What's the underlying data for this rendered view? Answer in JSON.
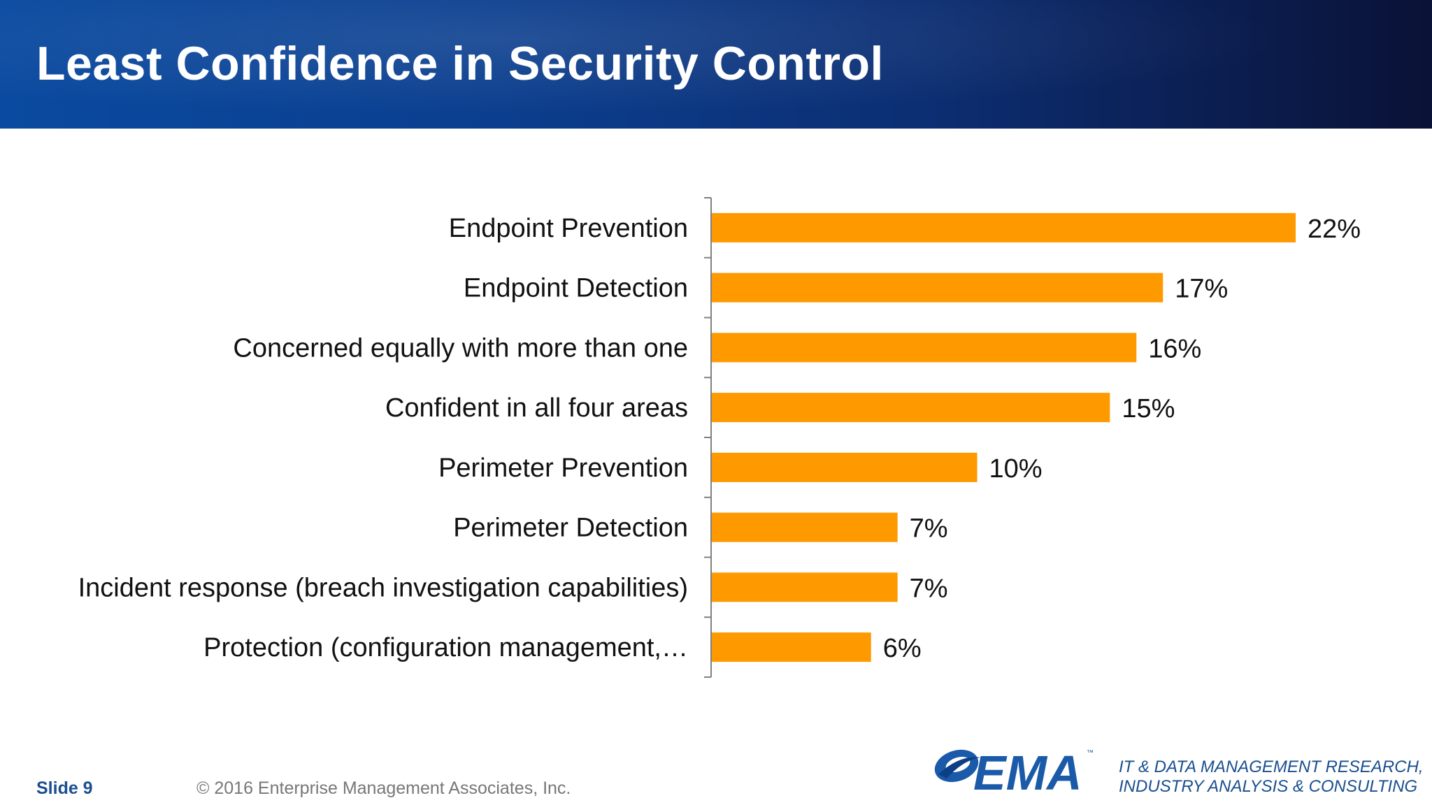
{
  "slide": {
    "title": "Least Confidence in Security Control",
    "slide_number": "Slide 9",
    "copyright": "© 2016 Enterprise Management Associates, Inc.",
    "logo_text": "EMA",
    "logo_tm": "™",
    "tagline": [
      "IT & DATA MANAGEMENT RESEARCH,",
      "INDUSTRY ANALYSIS & CONSULTING"
    ]
  },
  "colors": {
    "bar": "#FF9900",
    "header_dark": "#0a1236",
    "header_light": "#0a4aa0",
    "brand_blue": "#1a4f8f"
  },
  "chart_data": {
    "type": "bar",
    "orientation": "horizontal",
    "title": "Least Confidence in Security Control",
    "categories": [
      "Endpoint Prevention",
      "Endpoint Detection",
      "Concerned equally with more than one",
      "Confident in all four areas",
      "Perimeter Prevention",
      "Perimeter Detection",
      "Incident response (breach investigation capabilities)",
      "Protection (configuration management,…"
    ],
    "values": [
      22,
      17,
      16,
      15,
      10,
      7,
      7,
      6
    ],
    "value_labels": [
      "22%",
      "17%",
      "16%",
      "15%",
      "10%",
      "7%",
      "7%",
      "6%"
    ],
    "xlim": [
      0,
      22
    ],
    "grid": false,
    "legend": "none"
  }
}
